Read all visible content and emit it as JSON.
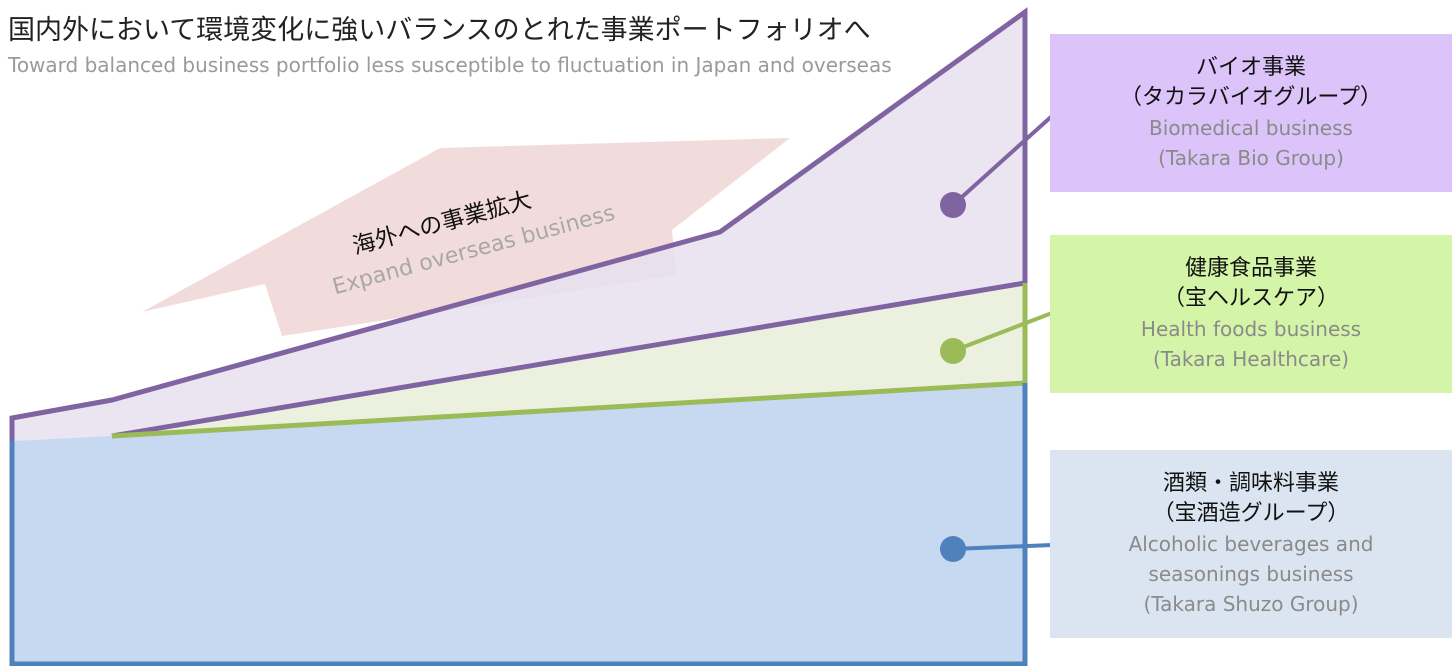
{
  "title": "国内外において環境変化に強いバランスのとれた事業ポートフォリオへ",
  "subtitle": "Toward balanced business portfolio less susceptible to fluctuation in Japan and overseas",
  "arrow": {
    "label_jp": "海外への事業拡大",
    "label_en": "Expand overseas business"
  },
  "segments": {
    "bio": {
      "label_jp_1": "バイオ事業",
      "label_jp_2": "（タカラバイオグループ）",
      "label_en_1": "Biomedical business",
      "label_en_2": "(Takara Bio Group)"
    },
    "health": {
      "label_jp_1": "健康食品事業",
      "label_jp_2": "（宝ヘルスケア）",
      "label_en_1": "Health foods business",
      "label_en_2": "(Takara Healthcare)"
    },
    "alcohol": {
      "label_jp_1": "酒類・調味料事業",
      "label_jp_2": "（宝酒造グループ）",
      "label_en_1": "Alcoholic beverages and",
      "label_en_2": "seasonings business",
      "label_en_3": "(Takara Shuzo Group)"
    }
  },
  "colors": {
    "bio_fill": "#e6e0ee",
    "bio_line": "#8064a2",
    "health_fill": "#ebf1de",
    "health_line": "#9bbb59",
    "alcohol_fill": "#c6d9f1",
    "alcohol_line": "#4f81bd",
    "arrow_fill": "#f2dcdb"
  }
}
